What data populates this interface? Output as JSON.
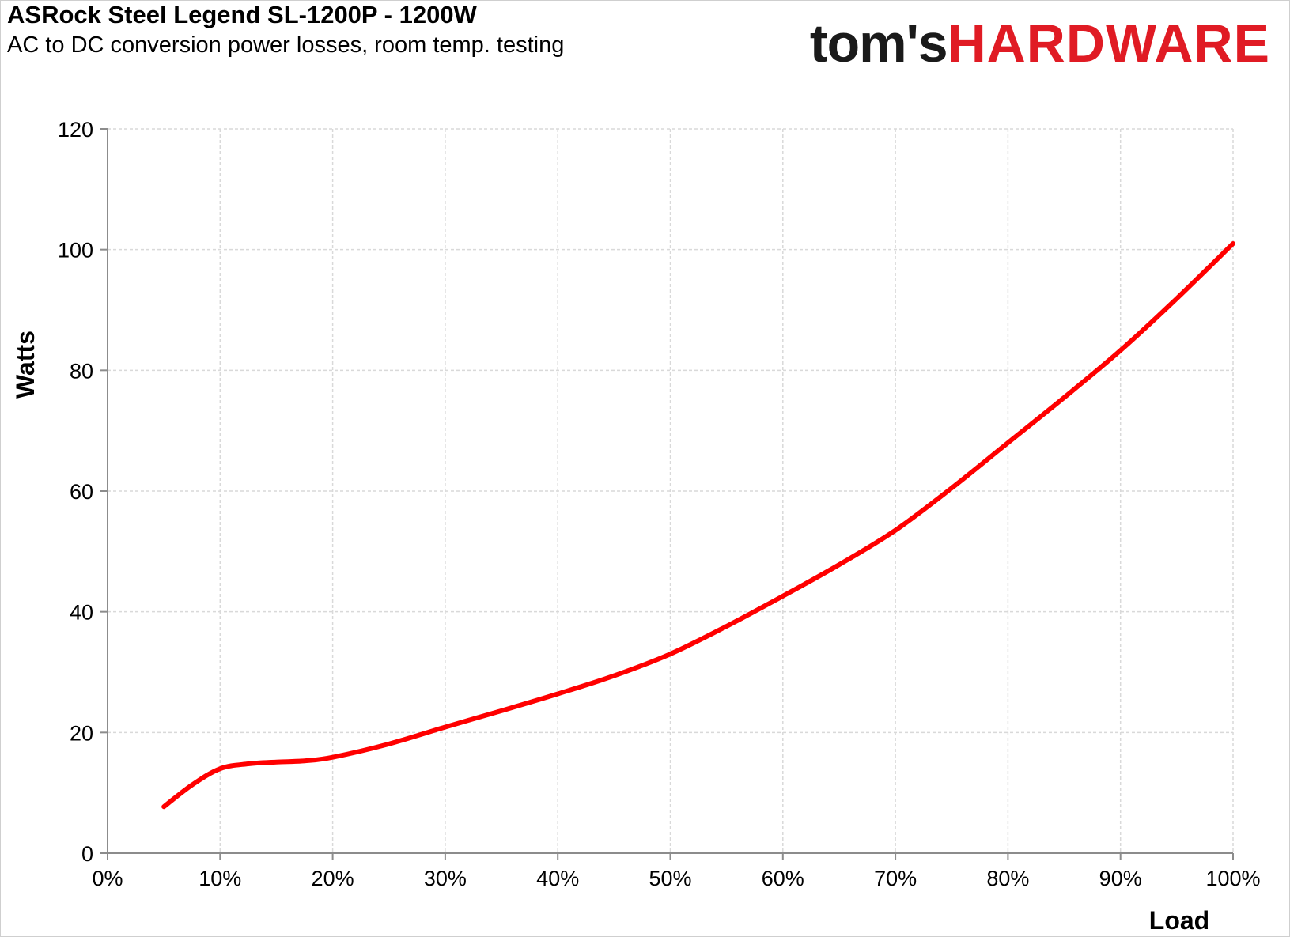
{
  "header": {
    "title": "ASRock Steel Legend SL-1200P - 1200W",
    "subtitle": "AC to DC conversion power losses, room temp. testing"
  },
  "logo": {
    "toms": "tom's",
    "hardware": "HARDWARE"
  },
  "colors": {
    "series": "#ff0000",
    "logo_red": "#e01b24",
    "grid": "#d9d9d9",
    "axis": "#8c8c8c"
  },
  "chart_data": {
    "type": "line",
    "title": "ASRock Steel Legend SL-1200P - 1200W",
    "subtitle": "AC to DC conversion power losses, room temp. testing",
    "xlabel": "Load",
    "ylabel": "Watts",
    "xlim": [
      0,
      100
    ],
    "ylim": [
      0,
      120
    ],
    "x_ticks": [
      0,
      10,
      20,
      30,
      40,
      50,
      60,
      70,
      80,
      90,
      100
    ],
    "x_tick_labels": [
      "0%",
      "10%",
      "20%",
      "30%",
      "40%",
      "50%",
      "60%",
      "70%",
      "80%",
      "90%",
      "100%"
    ],
    "y_ticks": [
      0,
      20,
      40,
      60,
      80,
      100,
      120
    ],
    "y_tick_labels": [
      "0",
      "20",
      "40",
      "60",
      "80",
      "100",
      "120"
    ],
    "grid": true,
    "legend": "none",
    "series": [
      {
        "x": [
          5,
          7.5,
          10,
          12.5,
          15,
          17.5,
          20,
          25,
          30,
          35,
          40,
          45,
          50,
          55,
          60,
          65,
          70,
          75,
          80,
          85,
          90,
          95,
          100
        ],
        "values": [
          7.7,
          11.3,
          14.0,
          14.8,
          15.1,
          15.3,
          15.9,
          18.1,
          20.9,
          23.6,
          26.4,
          29.4,
          33.0,
          37.6,
          42.6,
          47.8,
          53.5,
          60.5,
          68.0,
          75.5,
          83.3,
          91.9,
          101.0
        ]
      }
    ]
  }
}
